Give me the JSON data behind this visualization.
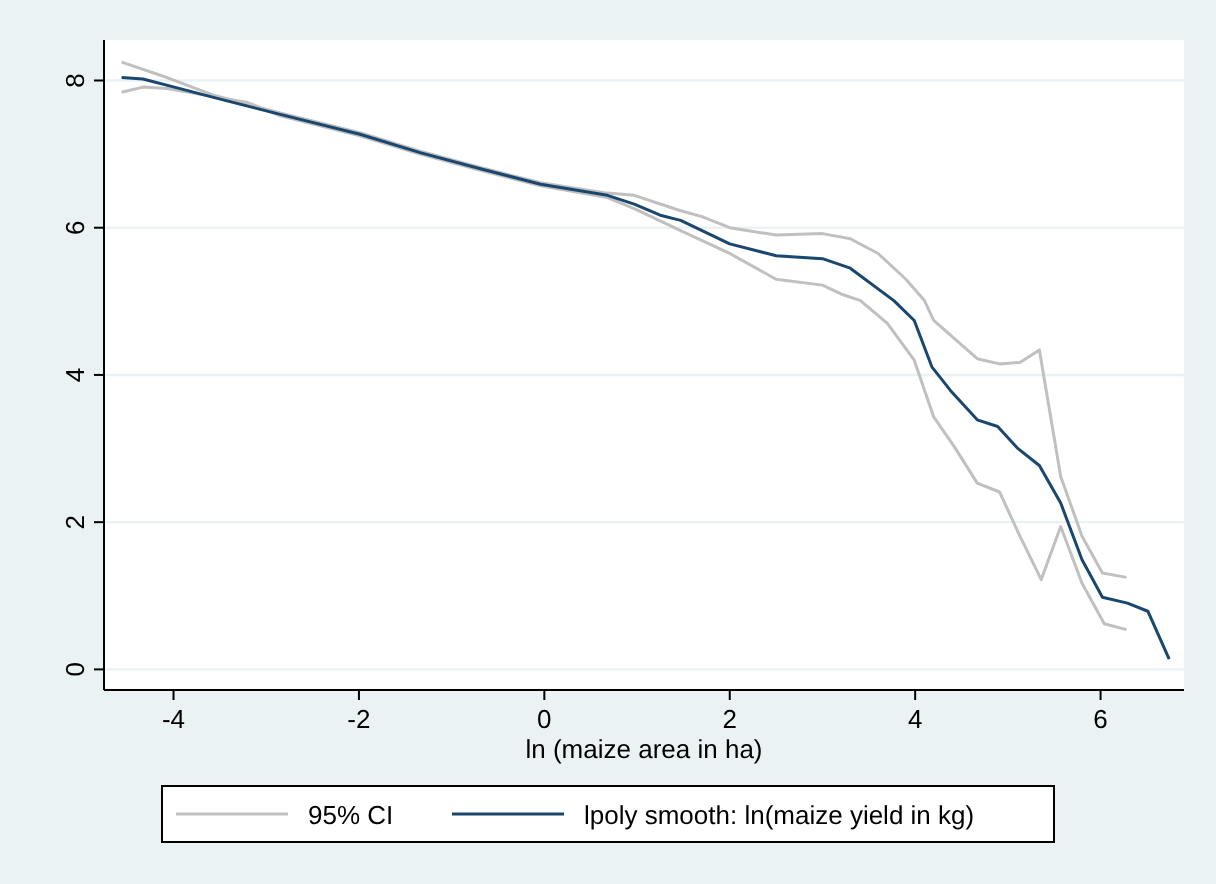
{
  "chart_data": {
    "type": "line",
    "xlabel": "ln (maize area in ha)",
    "xlim": [
      -4.75,
      6.9
    ],
    "xticks": [
      -4,
      -2,
      0,
      2,
      4,
      6
    ],
    "ylim": [
      -0.28,
      8.55
    ],
    "yticks": [
      0,
      2,
      4,
      6,
      8
    ],
    "grid": "y",
    "legend": "bottom",
    "marker": "none",
    "line_style": "solid",
    "series": [
      {
        "name": "95% CI",
        "color": "#c0c0c0",
        "x": [
          -4.56,
          -4.07,
          -3.57,
          -2.85,
          -1.99,
          -1.34,
          -0.69,
          -0.04,
          0.68,
          0.97,
          1.47,
          1.7,
          2.0,
          2.5,
          3.0,
          3.3,
          3.6,
          3.9,
          4.1,
          4.2,
          4.67,
          4.91,
          5.13,
          5.34,
          5.57,
          5.8,
          6.02,
          6.28
        ],
        "values": [
          8.25,
          8.04,
          7.8,
          7.56,
          7.29,
          7.04,
          6.82,
          6.61,
          6.47,
          6.44,
          6.23,
          6.15,
          6.0,
          5.9,
          5.92,
          5.85,
          5.65,
          5.3,
          5.01,
          4.74,
          4.22,
          4.15,
          4.17,
          4.34,
          2.62,
          1.81,
          1.31,
          1.25
        ]
      },
      {
        "color": "#c0c0c0",
        "x": [
          -4.56,
          -4.33,
          -4.07,
          -3.2,
          -2.85,
          -1.99,
          -1.34,
          -0.69,
          -0.04,
          0.68,
          0.97,
          1.47,
          2.0,
          2.5,
          3.0,
          3.2,
          3.41,
          3.7,
          3.99,
          4.2,
          4.42,
          4.67,
          4.91,
          5.13,
          5.36,
          5.57,
          5.8,
          6.04,
          6.28
        ],
        "values": [
          7.84,
          7.91,
          7.89,
          7.7,
          7.52,
          7.25,
          7.0,
          6.78,
          6.57,
          6.41,
          6.26,
          5.96,
          5.65,
          5.3,
          5.22,
          5.1,
          5.01,
          4.7,
          4.2,
          3.43,
          3.03,
          2.53,
          2.41,
          1.81,
          1.22,
          1.94,
          1.17,
          0.62,
          0.54
        ]
      },
      {
        "name": "lpoly smooth: ln(maize yield in kg)",
        "color": "#1a476f",
        "x": [
          -4.56,
          -4.33,
          -3.93,
          -3.57,
          -2.85,
          -1.99,
          -1.34,
          -0.69,
          -0.04,
          0.68,
          0.97,
          1.25,
          1.47,
          2.0,
          2.5,
          3.0,
          3.3,
          3.77,
          3.99,
          4.18,
          4.38,
          4.67,
          4.89,
          5.1,
          5.34,
          5.57,
          5.8,
          6.02,
          6.29,
          6.51,
          6.74
        ],
        "values": [
          8.04,
          8.02,
          7.89,
          7.77,
          7.54,
          7.27,
          7.02,
          6.8,
          6.59,
          6.44,
          6.32,
          6.17,
          6.1,
          5.78,
          5.62,
          5.58,
          5.45,
          5.01,
          4.74,
          4.11,
          3.79,
          3.39,
          3.3,
          3.01,
          2.77,
          2.26,
          1.49,
          0.98,
          0.9,
          0.79,
          0.14
        ]
      }
    ]
  }
}
